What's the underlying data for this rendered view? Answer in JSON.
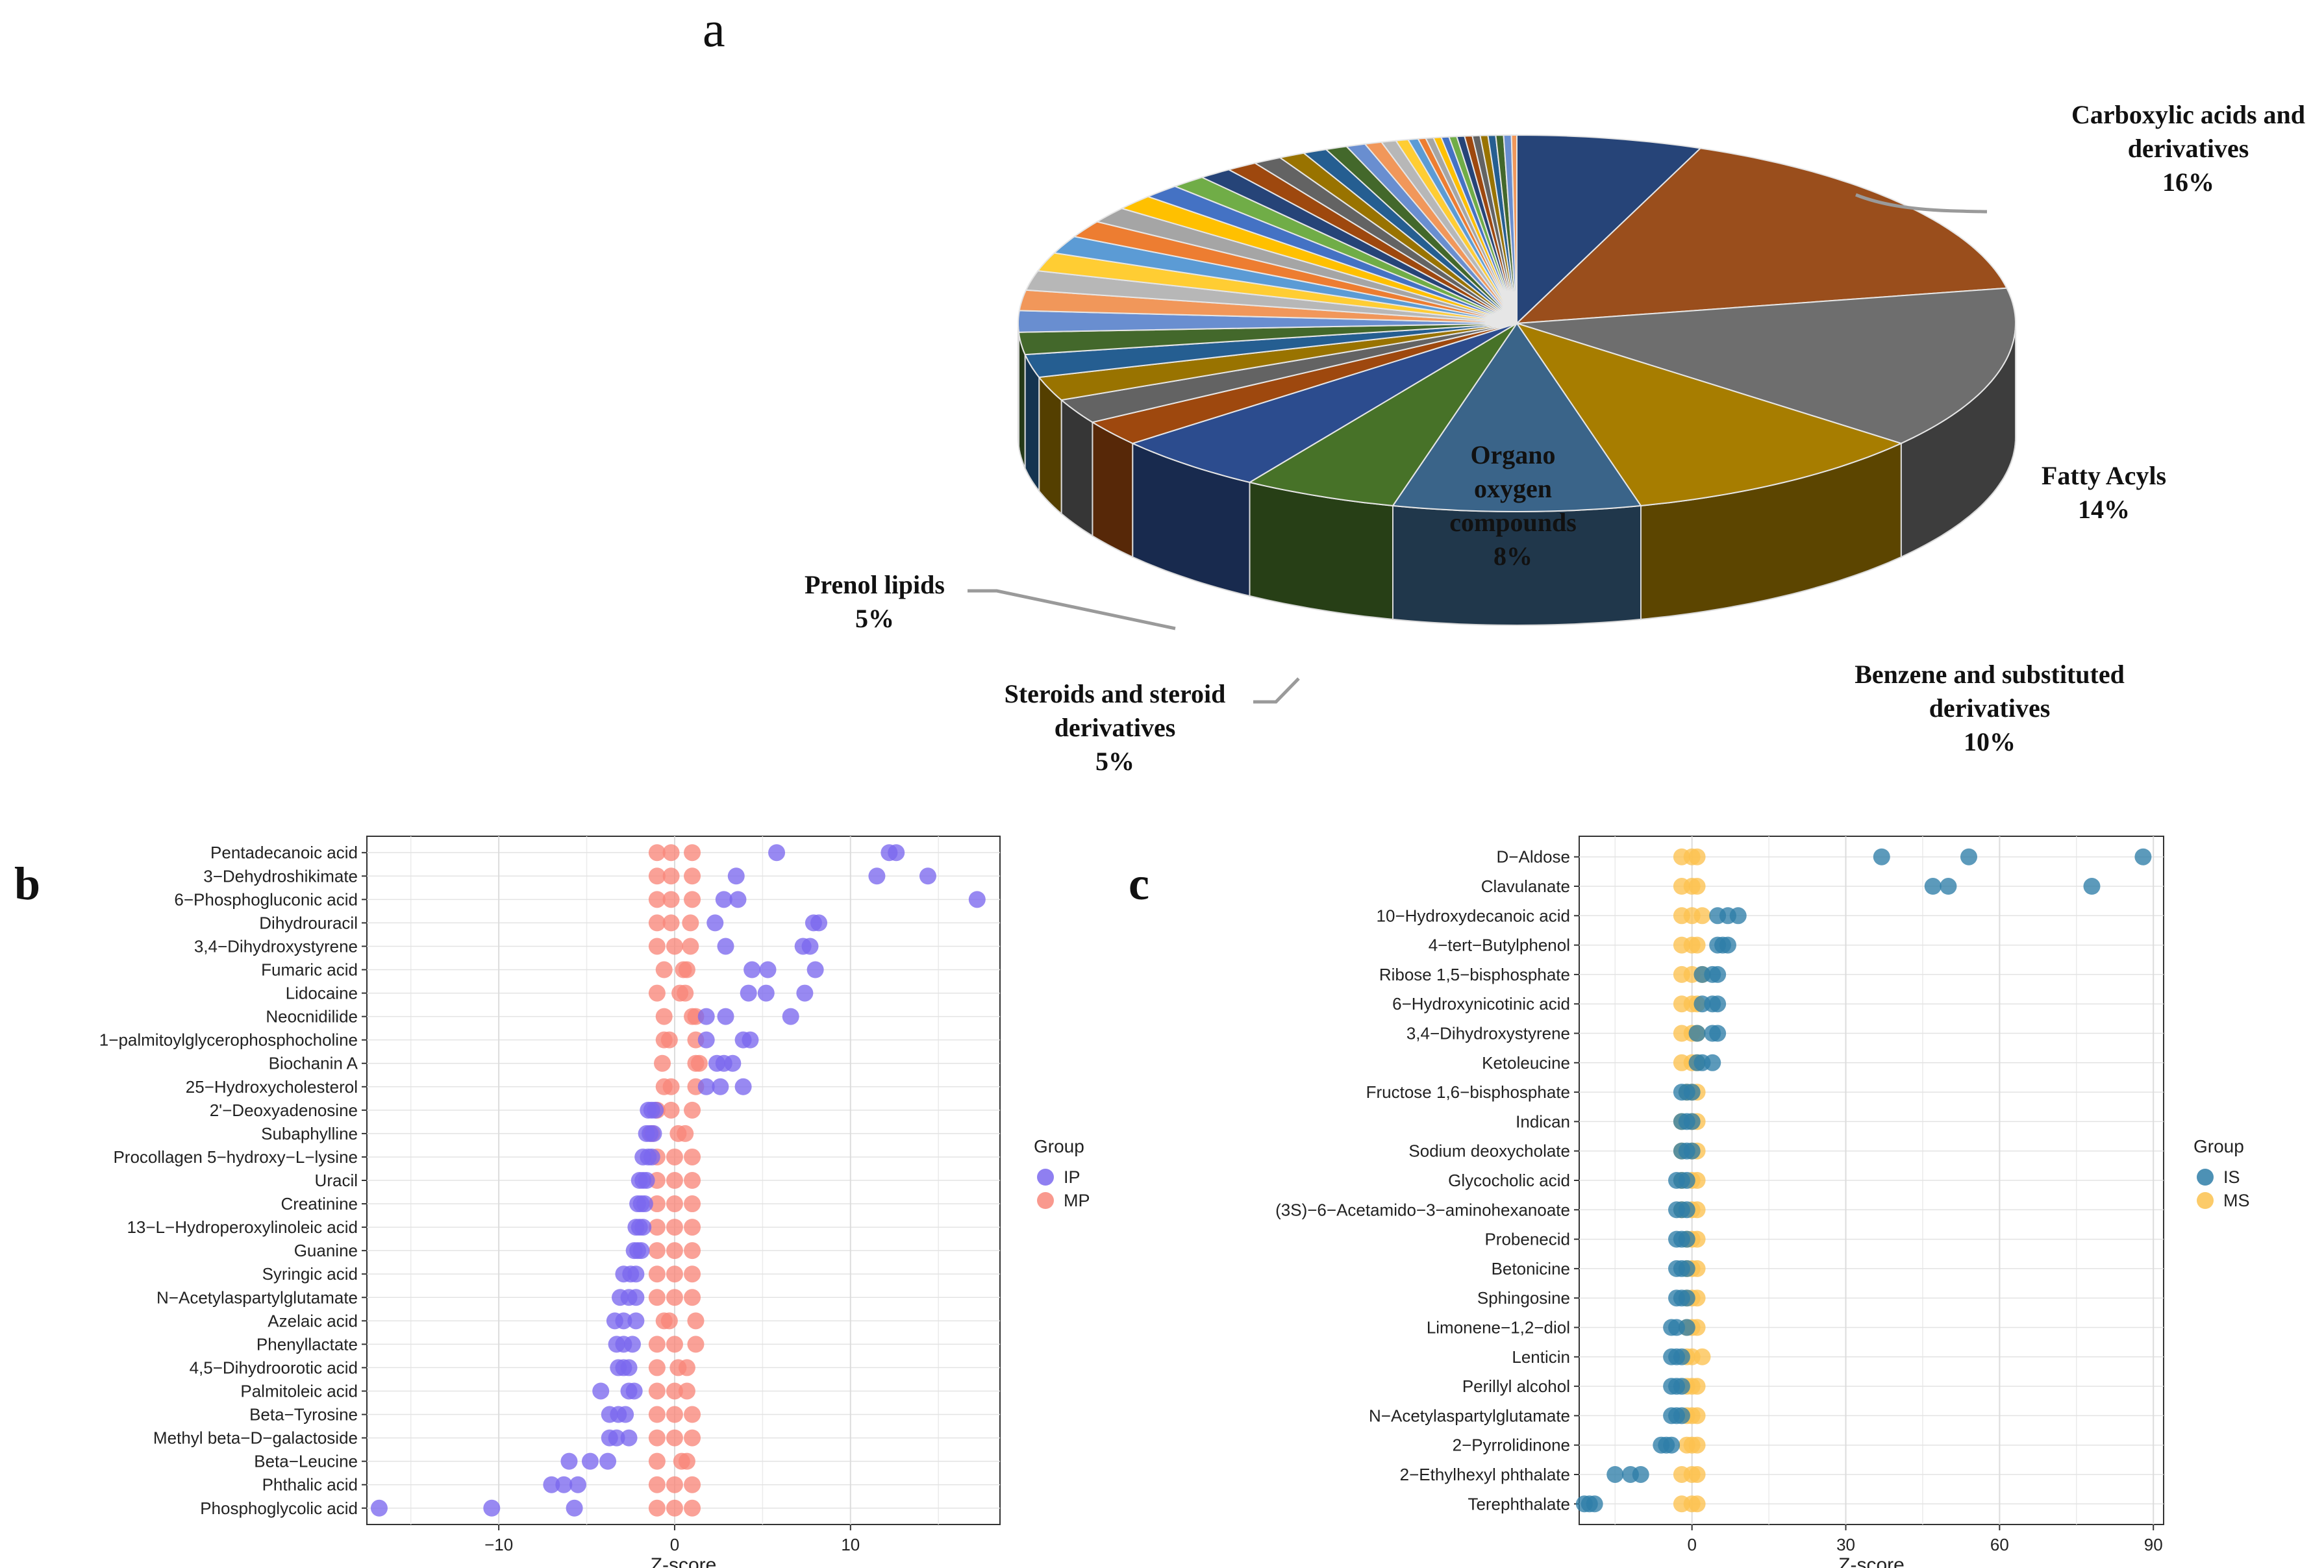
{
  "figure": {
    "panel_a_letter": "a",
    "panel_b_letter": "b",
    "panel_c_letter": "c"
  },
  "chart_data": [
    {
      "id": "a",
      "type": "pie",
      "title": "",
      "labelled_slices": [
        {
          "label_lines": [
            "Carboxylic acids and",
            "derivatives",
            "16%"
          ],
          "value": 16,
          "color": "#9A4E1C"
        },
        {
          "label_lines": [
            "Fatty Acyls",
            "14%"
          ],
          "value": 14,
          "color": "#6E6E6E"
        },
        {
          "label_lines": [
            "Benzene and substituted",
            "derivatives",
            "10%"
          ],
          "value": 10,
          "color": "#A77D00"
        },
        {
          "label_lines": [
            "Organo",
            "oxygen",
            "compounds",
            "8%"
          ],
          "value": 8,
          "color": "#3A6489"
        },
        {
          "label_lines": [
            "Steroids and steroid",
            "derivatives",
            "5%"
          ],
          "value": 5,
          "color": "#477228"
        },
        {
          "label_lines": [
            "Prenol lipids",
            "5%"
          ],
          "value": 5,
          "color": "#2C4C8E"
        }
      ],
      "first_unlabelled_slice_value": 6,
      "first_unlabelled_slice_color": "#264478",
      "other_small_slices_note": "many small unlabelled classes (remaining 36%)",
      "palette": [
        "#9E480E",
        "#636363",
        "#997300",
        "#255E91",
        "#43682B",
        "#698ED0",
        "#F1975A",
        "#B7B7B7",
        "#FFCD33",
        "#5B9BD5",
        "#ED7D31",
        "#A5A5A5",
        "#FFC000",
        "#4472C4",
        "#70AD47",
        "#264478"
      ]
    },
    {
      "id": "b",
      "type": "scatter",
      "title": "",
      "xlabel": "Z-score",
      "ylabel": "",
      "xlim": [
        -17.5,
        18.5
      ],
      "xticks": [
        -10,
        0,
        10
      ],
      "legend_title": "Group",
      "series": [
        {
          "name": "IP",
          "color": "#7B68EE"
        },
        {
          "name": "MP",
          "color": "#F8877A"
        }
      ],
      "categories": [
        "Pentadecanoic acid",
        "3−Dehydroshikimate",
        "6−Phosphogluconic acid",
        "Dihydrouracil",
        "3,4−Dihydroxystyrene",
        "Fumaric acid",
        "Lidocaine",
        "Neocnidilide",
        "1−palmitoylglycerophosphocholine",
        "Biochanin A",
        "25−Hydroxycholesterol",
        "2'−Deoxyadenosine",
        "Subaphylline",
        "Procollagen 5−hydroxy−L−lysine",
        "Uracil",
        "Creatinine",
        "13−L−Hydroperoxylinoleic acid",
        "Guanine",
        "Syringic acid",
        "N−Acetylaspartylglutamate",
        "Azelaic acid",
        "Phenyllactate",
        "4,5−Dihydroorotic acid",
        "Palmitoleic acid",
        "Beta−Tyrosine",
        "Methyl beta−D−galactoside",
        "Beta−Leucine",
        "Phthalic acid",
        "Phosphoglycolic acid"
      ],
      "values": {
        "IP": [
          [
            5.8,
            12.2,
            12.6
          ],
          [
            3.5,
            11.5,
            14.4
          ],
          [
            2.8,
            3.6,
            17.2
          ],
          [
            2.3,
            7.9,
            8.2
          ],
          [
            2.9,
            7.3,
            7.7
          ],
          [
            4.4,
            5.3,
            8.0
          ],
          [
            4.2,
            5.2,
            7.4
          ],
          [
            1.8,
            2.9,
            6.6
          ],
          [
            1.8,
            3.9,
            4.3
          ],
          [
            2.4,
            2.8,
            3.3
          ],
          [
            1.8,
            2.6,
            3.9
          ],
          [
            -1.5,
            -1.3,
            -1.1
          ],
          [
            -1.6,
            -1.4,
            -1.2
          ],
          [
            -1.8,
            -1.5,
            -1.3
          ],
          [
            -2.0,
            -1.8,
            -1.6
          ],
          [
            -2.1,
            -1.9,
            -1.7
          ],
          [
            -2.2,
            -2.0,
            -1.8
          ],
          [
            -2.3,
            -2.1,
            -1.9
          ],
          [
            -2.9,
            -2.5,
            -2.2
          ],
          [
            -3.1,
            -2.6,
            -2.2
          ],
          [
            -3.4,
            -2.9,
            -2.2
          ],
          [
            -3.3,
            -2.9,
            -2.4
          ],
          [
            -3.2,
            -2.9,
            -2.6
          ],
          [
            -4.2,
            -2.6,
            -2.3
          ],
          [
            -3.7,
            -3.2,
            -2.8
          ],
          [
            -3.7,
            -3.3,
            -2.6
          ],
          [
            -6.0,
            -4.8,
            -3.8
          ],
          [
            -7.0,
            -6.3,
            -5.5
          ],
          [
            -16.8,
            -10.4,
            -5.7
          ]
        ],
        "MP": [
          [
            -1.0,
            -0.2,
            1.0
          ],
          [
            -1.0,
            -0.2,
            1.0
          ],
          [
            -1.0,
            -0.2,
            1.0
          ],
          [
            -1.0,
            -0.2,
            0.9
          ],
          [
            -1.0,
            0.0,
            0.9
          ],
          [
            -0.6,
            0.5,
            0.7
          ],
          [
            -1.0,
            0.3,
            0.6
          ],
          [
            -0.6,
            1.0,
            1.2
          ],
          [
            -0.6,
            -0.3,
            1.2
          ],
          [
            -0.7,
            1.2,
            1.4
          ],
          [
            -0.6,
            -0.2,
            1.2
          ],
          [
            -1.0,
            -0.2,
            1.0
          ],
          [
            -1.3,
            0.2,
            0.6
          ],
          [
            -1.0,
            0.0,
            1.0
          ],
          [
            -1.0,
            0.0,
            1.0
          ],
          [
            -1.0,
            0.0,
            1.0
          ],
          [
            -1.0,
            0.0,
            1.0
          ],
          [
            -1.0,
            0.0,
            1.0
          ],
          [
            -1.0,
            0.0,
            1.0
          ],
          [
            -1.0,
            0.0,
            1.0
          ],
          [
            -0.6,
            -0.3,
            1.2
          ],
          [
            -1.0,
            0.0,
            1.2
          ],
          [
            -1.0,
            0.2,
            0.7
          ],
          [
            -1.0,
            0.0,
            0.7
          ],
          [
            -1.0,
            0.0,
            1.0
          ],
          [
            -1.0,
            0.0,
            1.0
          ],
          [
            -1.0,
            0.4,
            0.7
          ],
          [
            -1.0,
            0.0,
            1.0
          ],
          [
            -1.0,
            0.0,
            1.0
          ]
        ]
      }
    },
    {
      "id": "c",
      "type": "scatter",
      "title": "",
      "xlabel": "Z-score",
      "ylabel": "",
      "xlim": [
        -22,
        92
      ],
      "xticks": [
        0,
        30,
        60,
        90
      ],
      "legend_title": "Group",
      "series": [
        {
          "name": "IS",
          "color": "#2E7EA8"
        },
        {
          "name": "MS",
          "color": "#FCC24F"
        }
      ],
      "categories": [
        "D−Aldose",
        "Clavulanate",
        "10−Hydroxydecanoic acid",
        "4−tert−Butylphenol",
        "Ribose 1,5−bisphosphate",
        "6−Hydroxynicotinic acid",
        "3,4−Dihydroxystyrene",
        "Ketoleucine",
        "Fructose 1,6−bisphosphate",
        "Indican",
        "Sodium deoxycholate",
        "Glycocholic acid",
        "(3S)−6−Acetamido−3−aminohexanoate",
        "Probenecid",
        "Betonicine",
        "Sphingosine",
        "Limonene−1,2−diol",
        "Lenticin",
        "Perillyl alcohol",
        "N−Acetylaspartylglutamate",
        "2−Pyrrolidinone",
        "2−Ethylhexyl phthalate",
        "Terephthalate"
      ],
      "values": {
        "IS": [
          [
            37,
            54,
            88
          ],
          [
            47,
            50,
            78
          ],
          [
            5,
            7,
            9
          ],
          [
            5,
            6,
            7
          ],
          [
            2,
            4,
            5
          ],
          [
            2,
            4,
            5
          ],
          [
            1,
            4,
            5
          ],
          [
            1,
            2,
            4
          ],
          [
            -2,
            -1,
            0
          ],
          [
            -2,
            -1,
            0
          ],
          [
            -2,
            -1,
            0
          ],
          [
            -3,
            -2,
            -1
          ],
          [
            -3,
            -2,
            -1
          ],
          [
            -3,
            -2,
            -1
          ],
          [
            -3,
            -2,
            -1
          ],
          [
            -3,
            -2,
            -1
          ],
          [
            -4,
            -3,
            -1
          ],
          [
            -4,
            -3,
            -2
          ],
          [
            -4,
            -3,
            -2
          ],
          [
            -4,
            -3,
            -2
          ],
          [
            -6,
            -5,
            -4
          ],
          [
            -15,
            -12,
            -10
          ],
          [
            -21,
            -20,
            -19
          ]
        ],
        "MS": [
          [
            -2,
            0,
            1
          ],
          [
            -2,
            0,
            1
          ],
          [
            -2,
            0,
            2
          ],
          [
            -2,
            0,
            1
          ],
          [
            -2,
            0,
            2
          ],
          [
            -2,
            0,
            1
          ],
          [
            -2,
            0,
            1
          ],
          [
            -2,
            0,
            1
          ],
          [
            -1,
            0,
            1
          ],
          [
            -2,
            0,
            1
          ],
          [
            -2,
            0,
            1
          ],
          [
            -2,
            0,
            1
          ],
          [
            -2,
            0,
            1
          ],
          [
            -1,
            0,
            1
          ],
          [
            -1,
            0,
            1
          ],
          [
            -1,
            0,
            1
          ],
          [
            -1,
            0,
            1
          ],
          [
            -1,
            0,
            2
          ],
          [
            -1,
            0,
            1
          ],
          [
            -1,
            0,
            1
          ],
          [
            -1,
            0,
            1
          ],
          [
            -2,
            0,
            1
          ],
          [
            -2,
            0,
            1
          ]
        ]
      }
    }
  ]
}
